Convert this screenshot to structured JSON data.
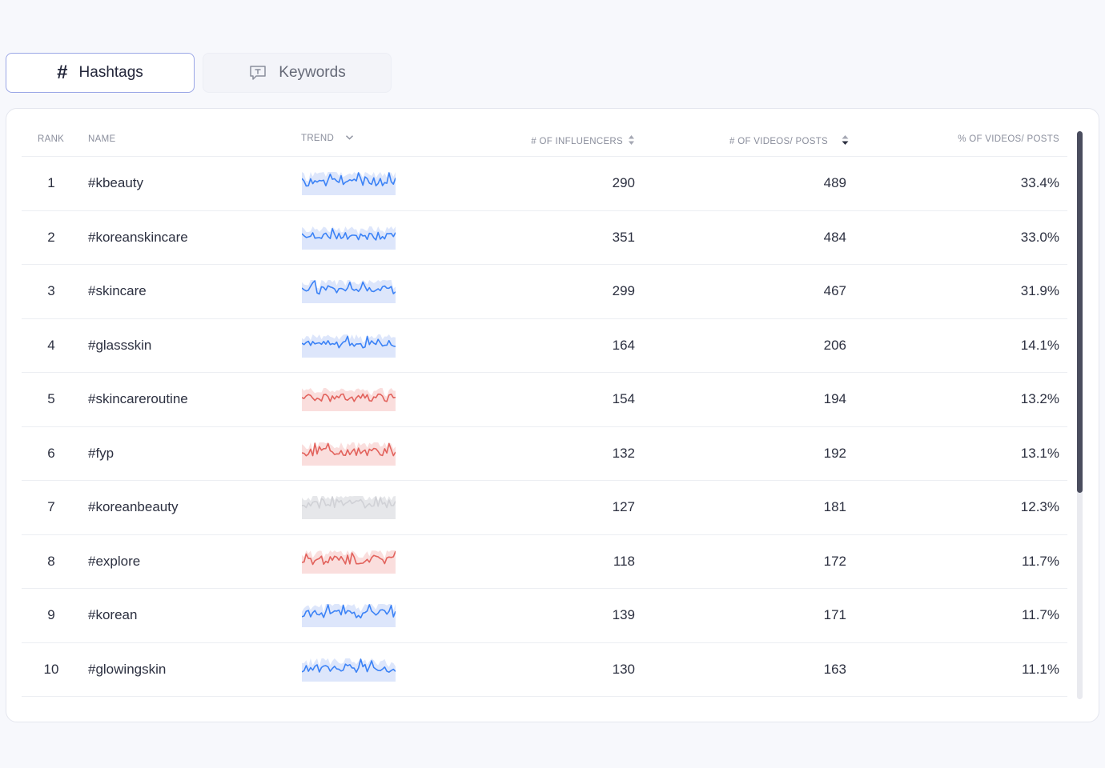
{
  "tabs": {
    "hashtags": {
      "label": "Hashtags",
      "icon": "hashtag-icon"
    },
    "keywords": {
      "label": "Keywords",
      "icon": "keyword-chat-icon"
    }
  },
  "table": {
    "headers": {
      "rank": "RANK",
      "name": "NAME",
      "trend": "TREND",
      "influencers": "# OF INFLUENCERS",
      "videos": "# OF VIDEOS/ POSTS",
      "percent": "% OF VIDEOS/ POSTS"
    },
    "rows": [
      {
        "rank": "1",
        "name": "#kbeauty",
        "influencers": "290",
        "videos": "489",
        "percent": "33.4%",
        "trend": "up"
      },
      {
        "rank": "2",
        "name": "#koreanskincare",
        "influencers": "351",
        "videos": "484",
        "percent": "33.0%",
        "trend": "up"
      },
      {
        "rank": "3",
        "name": "#skincare",
        "influencers": "299",
        "videos": "467",
        "percent": "31.9%",
        "trend": "up"
      },
      {
        "rank": "4",
        "name": "#glassskin",
        "influencers": "164",
        "videos": "206",
        "percent": "14.1%",
        "trend": "up"
      },
      {
        "rank": "5",
        "name": "#skincareroutine",
        "influencers": "154",
        "videos": "194",
        "percent": "13.2%",
        "trend": "down"
      },
      {
        "rank": "6",
        "name": "#fyp",
        "influencers": "132",
        "videos": "192",
        "percent": "13.1%",
        "trend": "down"
      },
      {
        "rank": "7",
        "name": "#koreanbeauty",
        "influencers": "127",
        "videos": "181",
        "percent": "12.3%",
        "trend": "flat"
      },
      {
        "rank": "8",
        "name": "#explore",
        "influencers": "118",
        "videos": "172",
        "percent": "11.7%",
        "trend": "down"
      },
      {
        "rank": "9",
        "name": "#korean",
        "influencers": "139",
        "videos": "171",
        "percent": "11.7%",
        "trend": "up"
      },
      {
        "rank": "10",
        "name": "#glowingskin",
        "influencers": "130",
        "videos": "163",
        "percent": "11.1%",
        "trend": "up"
      }
    ]
  },
  "colors": {
    "trend_up": "#3b82f6",
    "trend_up_band": "#dde6fb",
    "trend_down": "#e2625c",
    "trend_down_band": "#fadedd",
    "trend_flat": "#d0d1d6",
    "trend_flat_band": "#e6e7ea",
    "accent_border": "#9aa6e6"
  }
}
